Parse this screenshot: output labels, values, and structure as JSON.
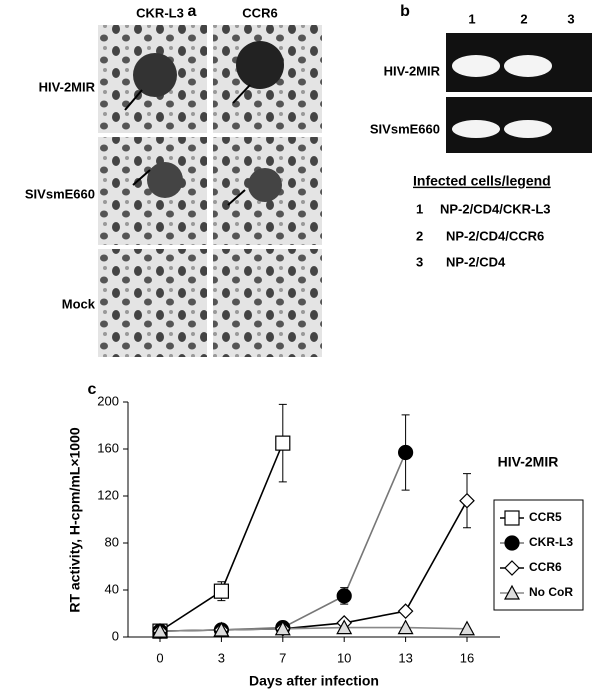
{
  "panel_a": {
    "label": "a",
    "columns": [
      "CKR-L3",
      "CCR6"
    ],
    "rows": [
      "HIV-2MIR",
      "SIVsmE660",
      "Mock"
    ]
  },
  "panel_b": {
    "label": "b",
    "lanes": [
      "1",
      "2",
      "3"
    ],
    "rows": [
      "HIV-2MIR",
      "SIVsmE660"
    ],
    "legend_title": "Infected cells/legend",
    "legend": [
      {
        "number": "1",
        "text": "NP-2/CD4/CKR-L3"
      },
      {
        "number": "2",
        "text": "NP-2/CD4/CCR6"
      },
      {
        "number": "3",
        "text": "NP-2/CD4"
      }
    ]
  },
  "chart_data": {
    "type": "line",
    "panel_label": "c",
    "annotation": "HIV-2MIR",
    "xlabel": "Days after infection",
    "ylabel": "RT activity, H-cpm/mL×1000",
    "categories": [
      "0",
      "3",
      "7",
      "10",
      "13",
      "16"
    ],
    "ylim": [
      0,
      200
    ],
    "yticks": [
      0,
      40,
      80,
      120,
      160,
      200
    ],
    "series": [
      {
        "name": "CCR5",
        "color": "#000000",
        "marker": "square",
        "marker_fill": "#ffffff",
        "values": [
          5,
          39,
          165,
          null,
          null,
          null
        ],
        "errors": [
          null,
          8,
          33,
          null,
          null,
          null
        ]
      },
      {
        "name": "CKR-L3",
        "color": "#777777",
        "marker": "circle",
        "marker_fill": "#000000",
        "values": [
          5,
          6,
          8,
          35,
          157,
          null
        ],
        "errors": [
          null,
          null,
          null,
          7,
          32,
          null
        ]
      },
      {
        "name": "CCR6",
        "color": "#000000",
        "marker": "diamond",
        "marker_fill": "#ffffff",
        "values": [
          5,
          6,
          7,
          12,
          22,
          116
        ],
        "errors": [
          null,
          null,
          null,
          null,
          null,
          23
        ]
      },
      {
        "name": "No CoR",
        "color": "#888888",
        "marker": "triangle",
        "marker_fill": "#dddddd",
        "values": [
          5,
          6,
          7,
          8,
          8,
          7
        ],
        "errors": [
          null,
          null,
          null,
          null,
          null,
          null
        ]
      }
    ]
  }
}
